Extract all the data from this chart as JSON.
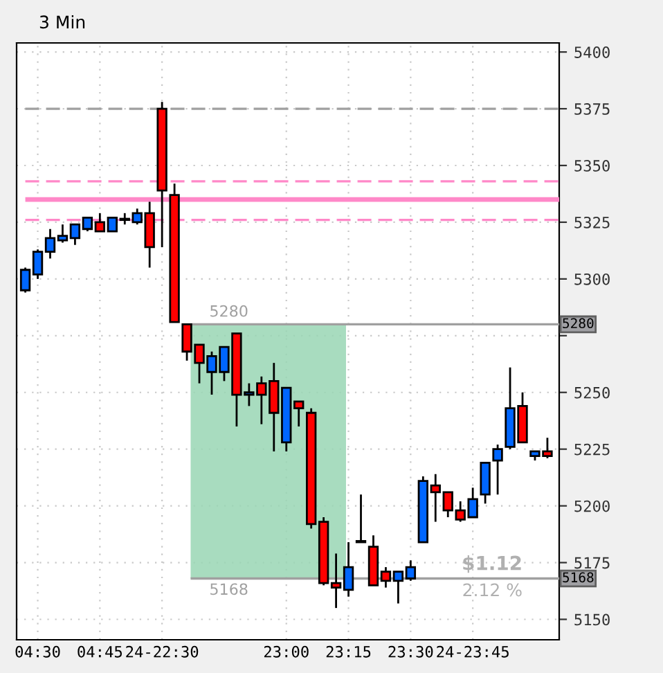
{
  "chart_data": {
    "type": "candlestick",
    "title": "3 Min",
    "categories": [
      null,
      "04:30",
      null,
      null,
      null,
      null,
      "04:45",
      null,
      null,
      null,
      null,
      "24-22:30",
      null,
      null,
      null,
      null,
      null,
      null,
      null,
      null,
      null,
      "23:00",
      null,
      null,
      null,
      null,
      "23:15",
      null,
      null,
      null,
      null,
      "23:30",
      null,
      null,
      null,
      null,
      "24-23:45",
      null,
      null,
      null,
      null,
      null,
      null
    ],
    "ohlc": [
      [
        5295,
        5305,
        5294,
        5304
      ],
      [
        5302,
        5313,
        5300,
        5312
      ],
      [
        5312,
        5322,
        5309,
        5318
      ],
      [
        5317,
        5324,
        5316,
        5319
      ],
      [
        5318,
        5324,
        5315,
        5324
      ],
      [
        5322,
        5327,
        5321,
        5327
      ],
      [
        5325,
        5329,
        5321,
        5321
      ],
      [
        5321,
        5327,
        5321,
        5327
      ],
      [
        5326,
        5329,
        5324,
        5326
      ],
      [
        5325,
        5331,
        5324,
        5329
      ],
      [
        5329,
        5334,
        5305,
        5314
      ],
      [
        5375,
        5378,
        5314,
        5339
      ],
      [
        5337,
        5342,
        5281,
        5281
      ],
      [
        5280,
        5280,
        5264,
        5268
      ],
      [
        5271,
        5271,
        5254,
        5263
      ],
      [
        5259,
        5268,
        5249,
        5266
      ],
      [
        5259,
        5270,
        5255,
        5270
      ],
      [
        5276,
        5276,
        5235,
        5249
      ],
      [
        5249,
        5254,
        5244,
        5250
      ],
      [
        5254,
        5257,
        5236,
        5249
      ],
      [
        5255,
        5263,
        5224,
        5241
      ],
      [
        5228,
        5252,
        5224,
        5252
      ],
      [
        5246,
        5246,
        5235,
        5243
      ],
      [
        5241,
        5243,
        5190,
        5192
      ],
      [
        5193,
        5195,
        5165,
        5166
      ],
      [
        5166,
        5179,
        5155,
        5164
      ],
      [
        5163,
        5184,
        5160,
        5173
      ],
      [
        5184,
        5205,
        5184,
        5184
      ],
      [
        5182,
        5187,
        5165,
        5165
      ],
      [
        5171,
        5173,
        5164,
        5167
      ],
      [
        5167,
        5171,
        5157,
        5171
      ],
      [
        5168,
        5176,
        5167,
        5173
      ],
      [
        5184,
        5213,
        5184,
        5211
      ],
      [
        5209,
        5214,
        5193,
        5206
      ],
      [
        5206,
        5206,
        5195,
        5198
      ],
      [
        5198,
        5202,
        5193,
        5194
      ],
      [
        5195,
        5208,
        5195,
        5203
      ],
      [
        5205,
        5219,
        5201,
        5219
      ],
      [
        5220,
        5227,
        5205,
        5225
      ],
      [
        5226,
        5261,
        5225,
        5243
      ],
      [
        5244,
        5250,
        5228,
        5228
      ],
      [
        5222,
        5224,
        5220,
        5224
      ],
      [
        5224,
        5230,
        5221,
        5222
      ]
    ],
    "colors": [
      "#0066ff",
      "#0066ff",
      "#0066ff",
      "#0066ff",
      "#0066ff",
      "#0066ff",
      "#ff0000",
      "#0066ff",
      "#000000",
      "#0066ff",
      "#ff0000",
      "#ff0000",
      "#ff0000",
      "#ff0000",
      "#ff0000",
      "#0066ff",
      "#0066ff",
      "#ff0000",
      "#0066ff",
      "#ff0000",
      "#ff0000",
      "#0066ff",
      "#ff0000",
      "#ff0000",
      "#ff0000",
      "#ff0000",
      "#0066ff",
      "#000000",
      "#ff0000",
      "#ff0000",
      "#0066ff",
      "#0066ff",
      "#0066ff",
      "#ff0000",
      "#ff0000",
      "#ff0000",
      "#0066ff",
      "#0066ff",
      "#0066ff",
      "#0066ff",
      "#ff0000",
      "#0066ff",
      "#ff0000"
    ],
    "ylim": [
      5141,
      5404
    ],
    "yticks": [
      5150,
      5175,
      5200,
      5225,
      5250,
      {
        "value": 5275,
        "label": null
      },
      5300,
      5325,
      5350,
      5375,
      5400
    ],
    "grid": true,
    "ref_lines": [
      {
        "axis": "y",
        "value": 5375,
        "color": "#a0a0a0",
        "line_style": "dashed"
      },
      {
        "axis": "y",
        "value": 5343,
        "color": "#ff88c8",
        "line_style": "dashed"
      },
      {
        "axis": "y",
        "value": 5335,
        "color": "#ff88c8",
        "line_style": "solid"
      },
      {
        "axis": "y",
        "value": 5326,
        "color": "#ff88c8",
        "line_style": "dashed"
      },
      {
        "axis": "y",
        "value": 5280,
        "label": "5280",
        "color": "#a0a0a0",
        "line_style": "solid"
      },
      {
        "axis": "y",
        "value": 5168,
        "label": "5168",
        "color": "#a0a0a0",
        "line_style": "solid"
      }
    ],
    "bands": [
      {
        "axis": "y",
        "from": 5168,
        "to": 5280,
        "color": "#99d6b4"
      }
    ],
    "annotations": [
      "5280",
      "5168",
      "$1.12",
      "2.12 %"
    ]
  }
}
